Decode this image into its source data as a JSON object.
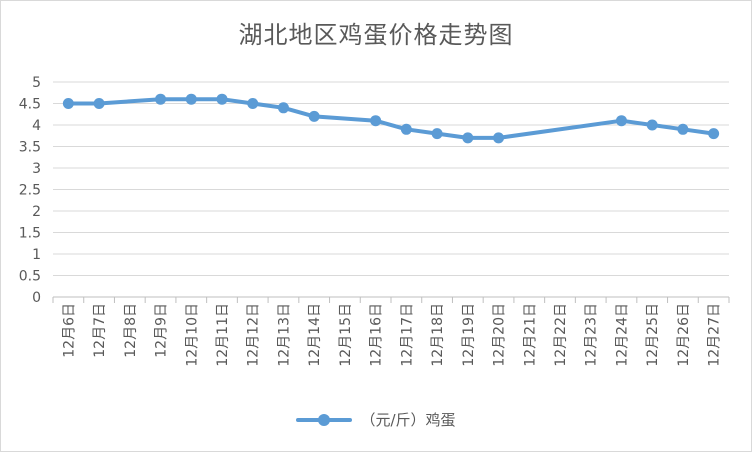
{
  "chart_data": {
    "type": "line",
    "title": "湖北地区鸡蛋价格走势图",
    "categories": [
      "12月6日",
      "12月7日",
      "12月8日",
      "12月9日",
      "12月10日",
      "12月11日",
      "12月12日",
      "12月13日",
      "12月14日",
      "12月15日",
      "12月16日",
      "12月17日",
      "12月18日",
      "12月19日",
      "12月20日",
      "12月21日",
      "12月22日",
      "12月23日",
      "12月24日",
      "12月25日",
      "12月26日",
      "12月27日"
    ],
    "series": [
      {
        "name": "（元/斤）鸡蛋",
        "values": [
          4.5,
          4.5,
          null,
          4.6,
          4.6,
          4.6,
          4.5,
          4.4,
          4.2,
          null,
          4.1,
          3.9,
          3.8,
          3.7,
          3.7,
          null,
          null,
          null,
          4.1,
          4.0,
          3.9,
          3.8
        ]
      }
    ],
    "ylim": [
      0,
      5
    ],
    "yticks": [
      "0",
      "0.5",
      "1",
      "1.5",
      "2",
      "2.5",
      "3",
      "3.5",
      "4",
      "4.5",
      "5"
    ],
    "grid": true,
    "legend_position": "bottom",
    "series_color": "#5b9bd5",
    "grid_color": "#d9d9d9",
    "axis_color": "#bfbfbf"
  }
}
